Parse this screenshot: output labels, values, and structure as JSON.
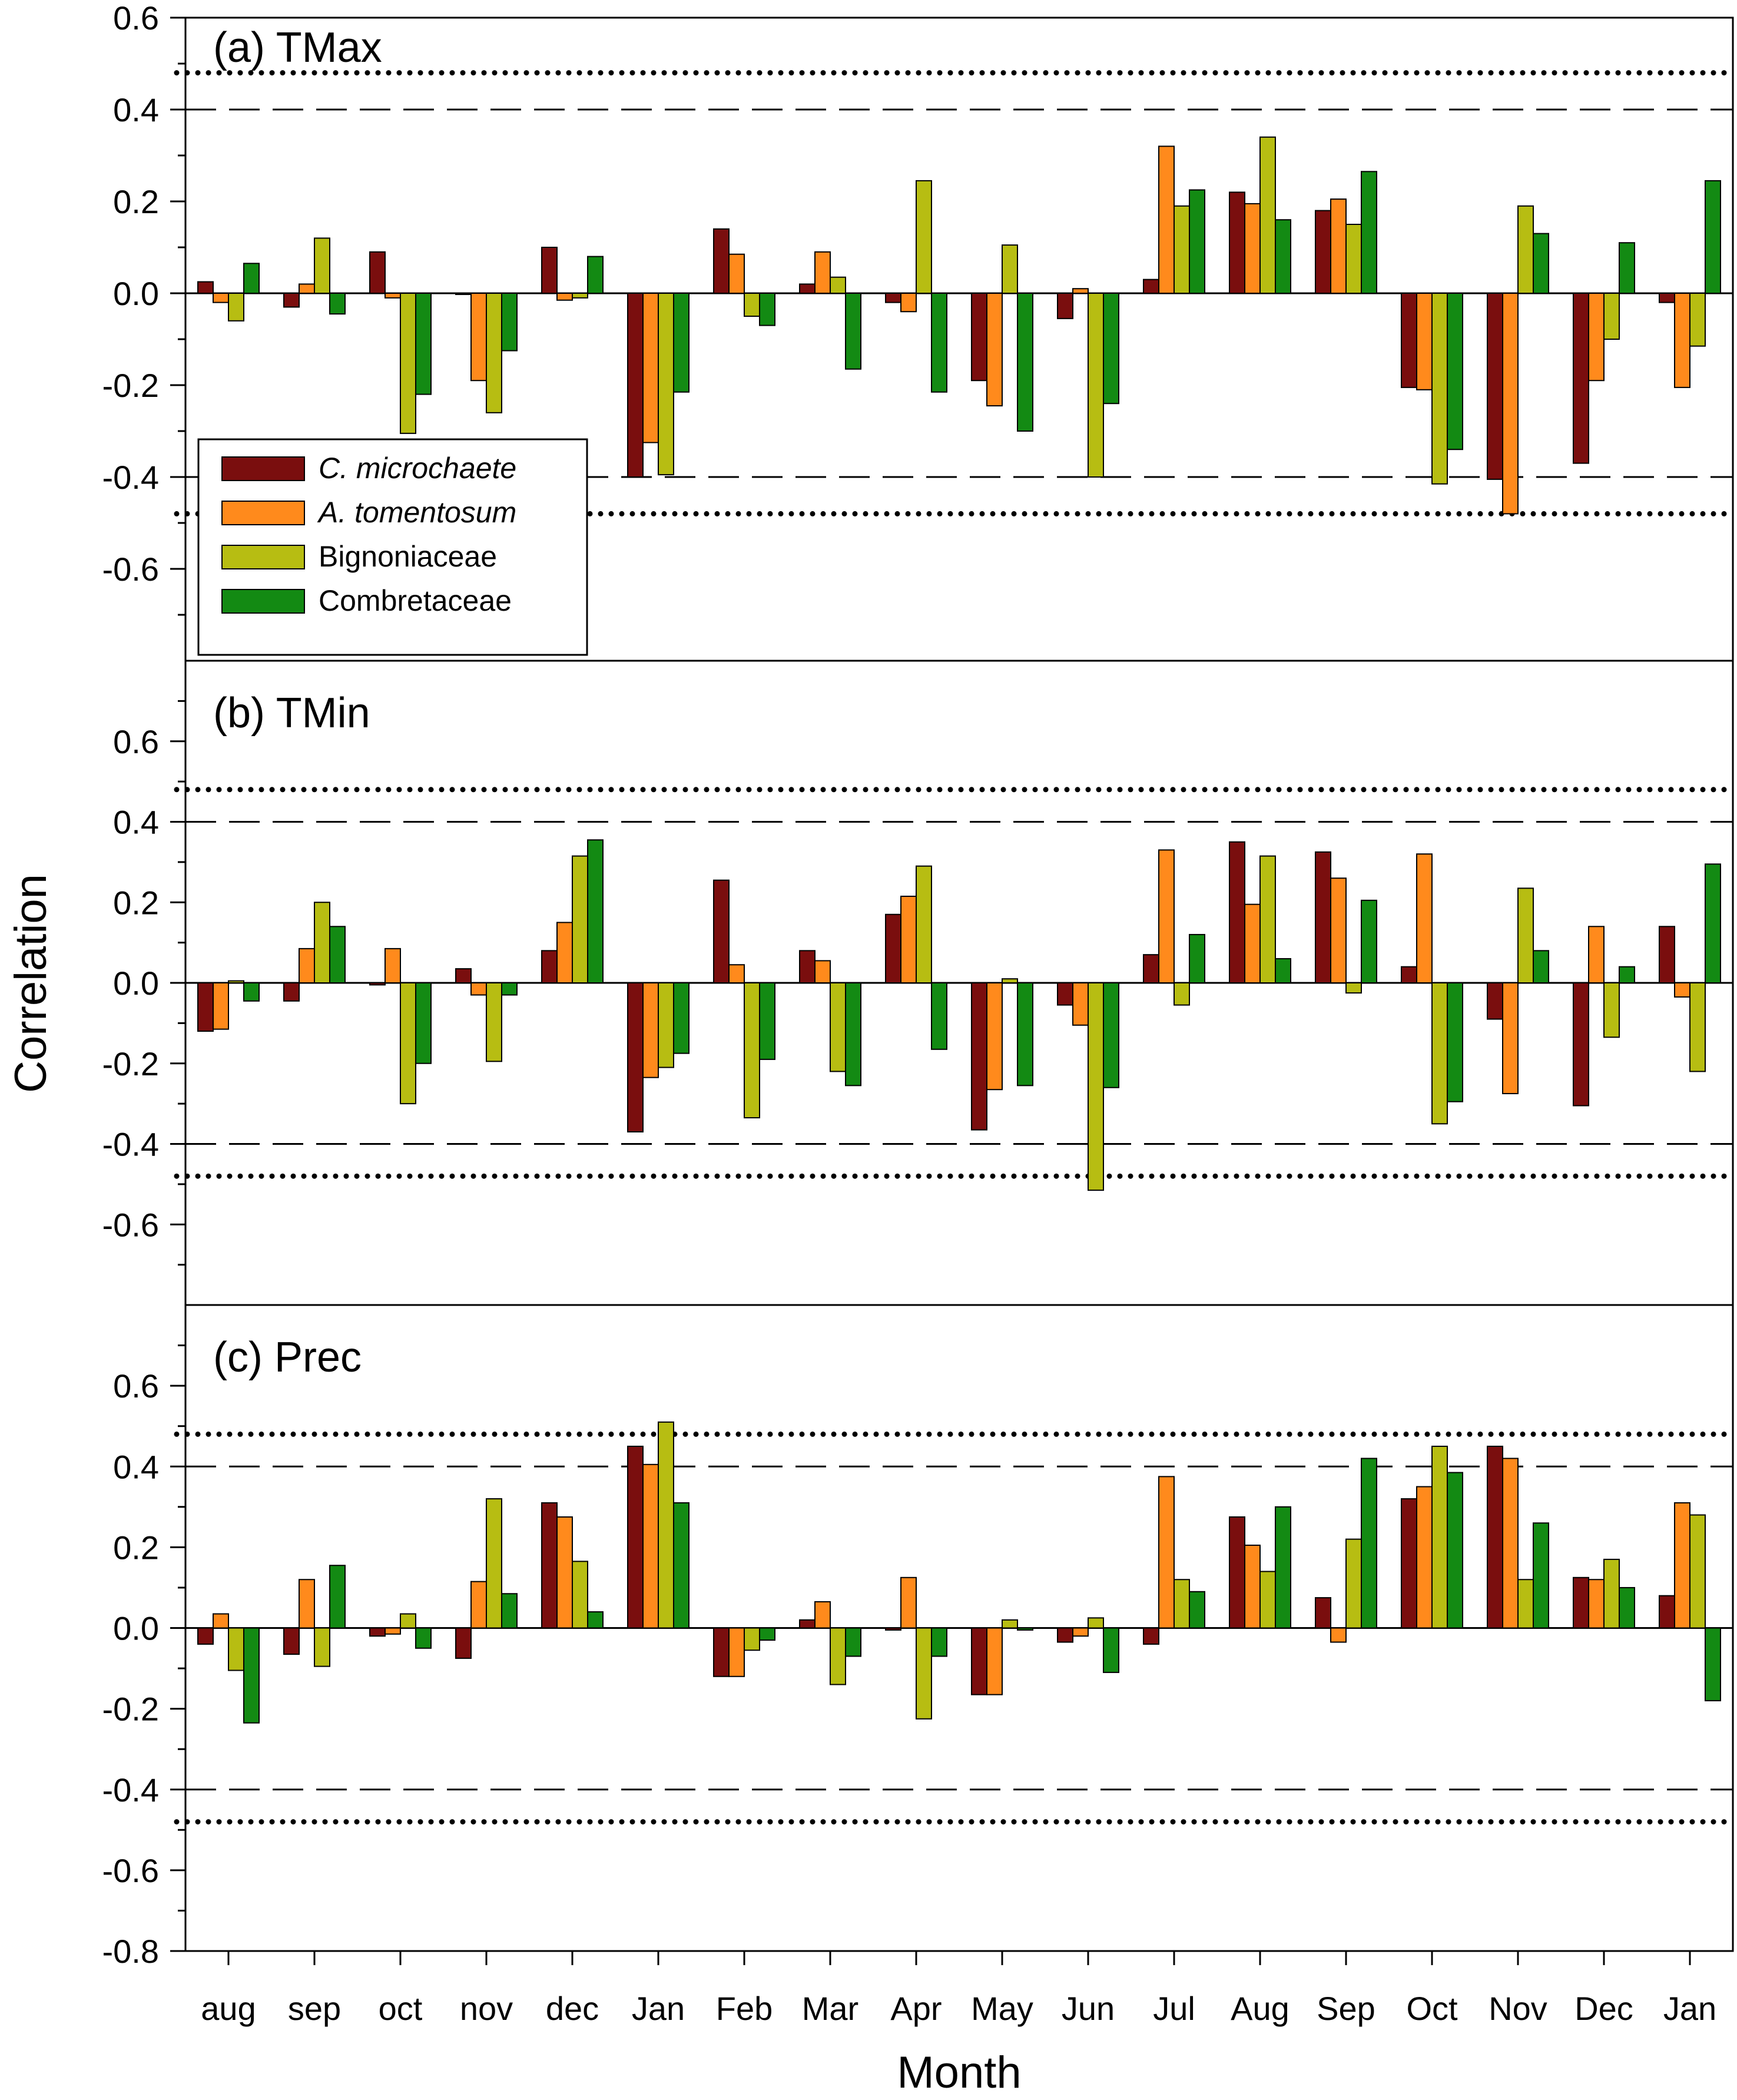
{
  "chart_data": {
    "type": "bar",
    "ylabel": "Correlation",
    "xlabel": "Month",
    "categories": [
      "aug",
      "sep",
      "oct",
      "nov",
      "dec",
      "Jan",
      "Feb",
      "Mar",
      "Apr",
      "May",
      "Jun",
      "Jul",
      "Aug",
      "Sep",
      "Oct",
      "Nov",
      "Dec",
      "Jan"
    ],
    "legend": {
      "placement": "inside panel (a), lower-left",
      "entries": [
        {
          "label": "C. microchaete",
          "color": "#7a0e0e",
          "italic": true
        },
        {
          "label": "A. tomentosum",
          "color": "#ff8a1c",
          "italic": true
        },
        {
          "label": "Bignoniaceae",
          "color": "#b7bd12",
          "italic": false
        },
        {
          "label": "Combretaceae",
          "color": "#138a13",
          "italic": false
        }
      ]
    },
    "reference_lines": [
      {
        "style": "dashed",
        "values": [
          0.4,
          -0.4
        ]
      },
      {
        "style": "dotted",
        "values": [
          0.48,
          -0.48
        ]
      }
    ],
    "panels": [
      {
        "title": "(a) TMax",
        "ylim": [
          -0.8,
          0.6
        ],
        "yticks": [
          "0.6",
          "0.4",
          "0.2",
          "0.0",
          "-0.2",
          "-0.4",
          "-0.6"
        ],
        "ytick_values": [
          0.6,
          0.4,
          0.2,
          0.0,
          -0.2,
          -0.4,
          -0.6
        ],
        "series": [
          {
            "name": "C. microchaete",
            "values": [
              0.025,
              -0.03,
              0.09,
              0.0,
              0.1,
              -0.4,
              0.14,
              0.02,
              -0.02,
              -0.19,
              -0.055,
              0.03,
              0.22,
              0.18,
              -0.205,
              -0.405,
              -0.37,
              -0.02
            ]
          },
          {
            "name": "A. tomentosum",
            "values": [
              -0.02,
              0.02,
              -0.01,
              -0.19,
              -0.015,
              -0.325,
              0.085,
              0.09,
              -0.04,
              -0.245,
              0.01,
              0.32,
              0.195,
              0.205,
              -0.21,
              -0.48,
              -0.19,
              -0.205
            ]
          },
          {
            "name": "Bignoniaceae",
            "values": [
              -0.06,
              0.12,
              -0.305,
              -0.26,
              -0.01,
              -0.395,
              -0.05,
              0.035,
              0.245,
              0.105,
              -0.4,
              0.19,
              0.34,
              0.15,
              -0.415,
              0.19,
              -0.1,
              -0.115
            ]
          },
          {
            "name": "Combretaceae",
            "values": [
              0.065,
              -0.045,
              -0.22,
              -0.125,
              0.08,
              -0.215,
              -0.07,
              -0.165,
              -0.215,
              -0.3,
              -0.24,
              0.225,
              0.16,
              0.265,
              -0.34,
              0.13,
              0.11,
              0.245
            ]
          }
        ]
      },
      {
        "title": "(b) TMin",
        "ylim": [
          -0.8,
          0.8
        ],
        "yticks": [
          "0.6",
          "0.4",
          "0.2",
          "0.0",
          "-0.2",
          "-0.4",
          "-0.6"
        ],
        "ytick_values": [
          0.6,
          0.4,
          0.2,
          0.0,
          -0.2,
          -0.4,
          -0.6
        ],
        "series": [
          {
            "name": "C. microchaete",
            "values": [
              -0.12,
              -0.045,
              -0.005,
              0.035,
              0.08,
              -0.37,
              0.255,
              0.08,
              0.17,
              -0.365,
              -0.055,
              0.07,
              0.35,
              0.325,
              0.04,
              -0.09,
              -0.305,
              0.14
            ]
          },
          {
            "name": "A. tomentosum",
            "values": [
              -0.115,
              0.085,
              0.085,
              -0.03,
              0.15,
              -0.235,
              0.045,
              0.055,
              0.215,
              -0.265,
              -0.105,
              0.33,
              0.195,
              0.26,
              0.32,
              -0.275,
              0.14,
              -0.035
            ]
          },
          {
            "name": "Bignoniaceae",
            "values": [
              0.005,
              0.2,
              -0.3,
              -0.195,
              0.315,
              -0.21,
              -0.335,
              -0.22,
              0.29,
              0.01,
              -0.515,
              -0.055,
              0.315,
              -0.025,
              -0.35,
              0.235,
              -0.135,
              -0.22
            ]
          },
          {
            "name": "Combretaceae",
            "values": [
              -0.045,
              0.14,
              -0.2,
              -0.03,
              0.355,
              -0.175,
              -0.19,
              -0.255,
              -0.165,
              -0.255,
              -0.26,
              0.12,
              0.06,
              0.205,
              -0.295,
              0.08,
              0.04,
              0.295
            ]
          }
        ]
      },
      {
        "title": "(c) Prec",
        "ylim": [
          -0.8,
          0.8
        ],
        "yticks": [
          "0.6",
          "0.4",
          "0.2",
          "0.0",
          "-0.2",
          "-0.4",
          "-0.6",
          "-0.8"
        ],
        "ytick_values": [
          0.6,
          0.4,
          0.2,
          0.0,
          -0.2,
          -0.4,
          -0.6,
          -0.8
        ],
        "series": [
          {
            "name": "C. microchaete",
            "values": [
              -0.04,
              -0.065,
              -0.02,
              -0.075,
              0.31,
              0.45,
              -0.12,
              0.02,
              -0.005,
              -0.165,
              -0.035,
              -0.04,
              0.275,
              0.075,
              0.32,
              0.45,
              0.125,
              0.08
            ]
          },
          {
            "name": "A. tomentosum",
            "values": [
              0.035,
              0.12,
              -0.015,
              0.115,
              0.275,
              0.405,
              -0.12,
              0.065,
              0.125,
              -0.165,
              -0.02,
              0.375,
              0.205,
              -0.035,
              0.35,
              0.42,
              0.12,
              0.31
            ]
          },
          {
            "name": "Bignoniaceae",
            "values": [
              -0.105,
              -0.095,
              0.035,
              0.32,
              0.165,
              0.51,
              -0.055,
              -0.14,
              -0.225,
              0.02,
              0.025,
              0.12,
              0.14,
              0.22,
              0.45,
              0.12,
              0.17,
              0.28
            ]
          },
          {
            "name": "Combretaceae",
            "values": [
              -0.235,
              0.155,
              -0.05,
              0.085,
              0.04,
              0.31,
              -0.03,
              -0.07,
              -0.07,
              -0.005,
              -0.11,
              0.09,
              0.3,
              0.42,
              0.385,
              0.26,
              0.1,
              -0.18
            ]
          }
        ]
      }
    ]
  }
}
